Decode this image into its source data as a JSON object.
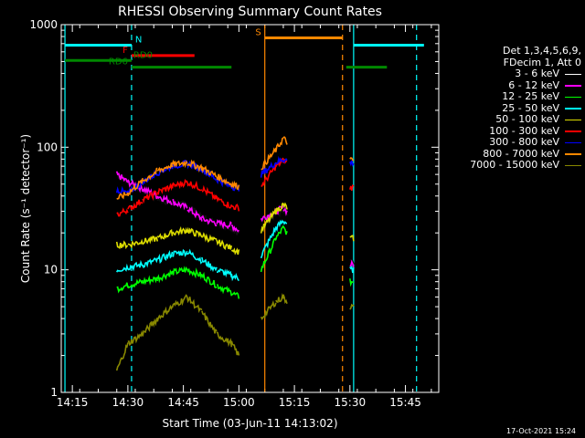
{
  "chart_data": {
    "type": "line",
    "title": "RHESSI Observing Summary Count Rates",
    "xlabel": "Start Time (03-Jun-11 14:13:02)",
    "ylabel": "Count Rate (s⁻¹ detector⁻¹)",
    "y_scale": "log",
    "ylim": [
      1,
      1000
    ],
    "xlim": [
      "14:12",
      "15:54"
    ],
    "x_ticks": [
      "14:15",
      "14:30",
      "14:45",
      "15:00",
      "15:15",
      "15:30",
      "15:45"
    ],
    "y_ticks": [
      "1",
      "10",
      "100",
      "1000"
    ],
    "legend": {
      "placement": "right",
      "header": [
        "Det 1,3,4,5,6,9,",
        "FDecim 1, Att 0"
      ],
      "entries": [
        {
          "label": "3 - 6 keV",
          "color": "#ffffff"
        },
        {
          "label": "6 - 12 keV",
          "color": "#ff00ff"
        },
        {
          "label": "12 - 25 keV",
          "color": "#00ff00"
        },
        {
          "label": "25 - 50 keV",
          "color": "#00ffff"
        },
        {
          "label": "50 - 100 keV",
          "color": "#dddd00"
        },
        {
          "label": "100 - 300 keV",
          "color": "#ff0000"
        },
        {
          "label": "300 - 800 keV",
          "color": "#0000ff"
        },
        {
          "label": "800 - 7000 keV",
          "color": "#ff8800"
        },
        {
          "label": "7000 - 15000 keV",
          "color": "#888800"
        }
      ]
    },
    "series": [
      {
        "name": "3 - 6 keV",
        "color": "#000000",
        "points": [
          [
            "14:27",
            60
          ],
          [
            "14:30",
            52
          ],
          [
            "14:34",
            45
          ],
          [
            "14:38",
            38
          ],
          [
            "14:42",
            35
          ],
          [
            "14:46",
            34
          ],
          [
            "14:50",
            27
          ],
          [
            "14:54",
            24
          ],
          [
            "14:58",
            22
          ],
          [
            "15:00",
            20
          ],
          [
            "15:06",
            25
          ],
          [
            "15:10",
            28
          ],
          [
            "15:12",
            30
          ],
          [
            "15:13",
            28
          ],
          [
            "15:30",
            12
          ],
          [
            "15:31",
            11
          ]
        ]
      },
      {
        "name": "6 - 12 keV",
        "color": "#ff00ff",
        "points": [
          [
            "14:27",
            60
          ],
          [
            "14:30",
            52
          ],
          [
            "14:34",
            46
          ],
          [
            "14:38",
            40
          ],
          [
            "14:42",
            36
          ],
          [
            "14:46",
            32
          ],
          [
            "14:50",
            26
          ],
          [
            "14:54",
            24
          ],
          [
            "14:58",
            23
          ],
          [
            "15:00",
            21
          ],
          [
            "15:06",
            26
          ],
          [
            "15:10",
            30
          ],
          [
            "15:12",
            32
          ],
          [
            "15:13",
            30
          ],
          [
            "15:30",
            11
          ],
          [
            "15:31",
            11
          ]
        ]
      },
      {
        "name": "12 - 25 keV",
        "color": "#00ff00",
        "points": [
          [
            "14:27",
            7
          ],
          [
            "14:30",
            7.5
          ],
          [
            "14:34",
            8
          ],
          [
            "14:38",
            8.5
          ],
          [
            "14:42",
            9.5
          ],
          [
            "14:46",
            10
          ],
          [
            "14:50",
            9
          ],
          [
            "14:54",
            7.5
          ],
          [
            "14:58",
            6.5
          ],
          [
            "15:00",
            6
          ],
          [
            "15:06",
            10
          ],
          [
            "15:10",
            18
          ],
          [
            "15:12",
            22
          ],
          [
            "15:13",
            20
          ],
          [
            "15:30",
            8
          ],
          [
            "15:31",
            8
          ]
        ]
      },
      {
        "name": "25 - 50 keV",
        "color": "#00ffff",
        "points": [
          [
            "14:27",
            10
          ],
          [
            "14:30",
            10.5
          ],
          [
            "14:34",
            11
          ],
          [
            "14:38",
            12
          ],
          [
            "14:42",
            13.5
          ],
          [
            "14:46",
            14
          ],
          [
            "14:50",
            12
          ],
          [
            "14:54",
            10
          ],
          [
            "14:58",
            9
          ],
          [
            "15:00",
            8.5
          ],
          [
            "15:06",
            13
          ],
          [
            "15:10",
            22
          ],
          [
            "15:12",
            25
          ],
          [
            "15:13",
            24
          ],
          [
            "15:30",
            10
          ],
          [
            "15:31",
            10
          ]
        ]
      },
      {
        "name": "50 - 100 keV",
        "color": "#dddd00",
        "points": [
          [
            "14:27",
            16
          ],
          [
            "14:30",
            16
          ],
          [
            "14:34",
            17
          ],
          [
            "14:38",
            18
          ],
          [
            "14:42",
            20
          ],
          [
            "14:46",
            21
          ],
          [
            "14:50",
            19
          ],
          [
            "14:54",
            17
          ],
          [
            "14:58",
            15
          ],
          [
            "15:00",
            14
          ],
          [
            "15:06",
            21
          ],
          [
            "15:10",
            30
          ],
          [
            "15:12",
            34
          ],
          [
            "15:13",
            32
          ],
          [
            "15:30",
            18
          ],
          [
            "15:31",
            18
          ]
        ]
      },
      {
        "name": "100 - 300 keV",
        "color": "#ff0000",
        "points": [
          [
            "14:27",
            28
          ],
          [
            "14:30",
            31
          ],
          [
            "14:34",
            37
          ],
          [
            "14:38",
            43
          ],
          [
            "14:42",
            48
          ],
          [
            "14:46",
            52
          ],
          [
            "14:50",
            46
          ],
          [
            "14:54",
            38
          ],
          [
            "14:58",
            33
          ],
          [
            "15:00",
            32
          ],
          [
            "15:06",
            48
          ],
          [
            "15:10",
            70
          ],
          [
            "15:12",
            78
          ],
          [
            "15:13",
            75
          ],
          [
            "15:30",
            47
          ],
          [
            "15:31",
            47
          ]
        ]
      },
      {
        "name": "300 - 800 keV",
        "color": "#0000ff",
        "points": [
          [
            "14:27",
            45
          ],
          [
            "14:30",
            42
          ],
          [
            "14:34",
            52
          ],
          [
            "14:38",
            62
          ],
          [
            "14:42",
            70
          ],
          [
            "14:46",
            74
          ],
          [
            "14:50",
            66
          ],
          [
            "14:54",
            55
          ],
          [
            "14:58",
            48
          ],
          [
            "15:00",
            46
          ],
          [
            "15:06",
            60
          ],
          [
            "15:10",
            75
          ],
          [
            "15:12",
            80
          ],
          [
            "15:13",
            78
          ],
          [
            "15:30",
            75
          ],
          [
            "15:31",
            75
          ]
        ]
      },
      {
        "name": "800 - 7000 keV",
        "color": "#ff8800",
        "points": [
          [
            "14:27",
            38
          ],
          [
            "14:30",
            42
          ],
          [
            "14:34",
            53
          ],
          [
            "14:38",
            64
          ],
          [
            "14:42",
            72
          ],
          [
            "14:46",
            75
          ],
          [
            "14:50",
            68
          ],
          [
            "14:54",
            58
          ],
          [
            "14:58",
            50
          ],
          [
            "15:00",
            48
          ],
          [
            "15:06",
            68
          ],
          [
            "15:10",
            95
          ],
          [
            "15:12",
            118
          ],
          [
            "15:13",
            110
          ],
          [
            "15:30",
            78
          ],
          [
            "15:31",
            78
          ]
        ]
      },
      {
        "name": "7000 - 15000 keV",
        "color": "#888800",
        "points": [
          [
            "14:27",
            1.5
          ],
          [
            "14:30",
            2.5
          ],
          [
            "14:34",
            3
          ],
          [
            "14:38",
            4
          ],
          [
            "14:42",
            5
          ],
          [
            "14:46",
            6
          ],
          [
            "14:50",
            4.5
          ],
          [
            "14:54",
            3
          ],
          [
            "14:58",
            2.5
          ],
          [
            "15:00",
            2
          ],
          [
            "15:06",
            4
          ],
          [
            "15:10",
            5.5
          ],
          [
            "15:12",
            6
          ],
          [
            "15:13",
            5.5
          ],
          [
            "15:30",
            5
          ],
          [
            "15:31",
            5
          ]
        ]
      }
    ],
    "flag_bars": [
      {
        "label": "N",
        "color": "#00ffff",
        "y": 680,
        "segments": [
          [
            "14:13",
            "14:31"
          ],
          [
            "15:31",
            "15:50"
          ]
        ]
      },
      {
        "label": "S",
        "color": "#ff8800",
        "y": 780,
        "segments": [
          [
            "15:07",
            "15:28"
          ]
        ]
      },
      {
        "label": "F",
        "color": "#ff0000",
        "y": 560,
        "segments": [
          [
            "14:31",
            "14:48"
          ]
        ]
      },
      {
        "label": "RD0",
        "color": "#008800",
        "y": 510,
        "segments": [
          [
            "14:13",
            "14:31"
          ]
        ]
      },
      {
        "label": "RD6",
        "color": "#008800",
        "y": 450,
        "segments": [
          [
            "14:31",
            "14:58"
          ],
          [
            "15:29",
            "15:40"
          ]
        ]
      }
    ],
    "vertical_markers": [
      {
        "time": "14:13",
        "color": "#00ffff",
        "style": "solid"
      },
      {
        "time": "14:31",
        "color": "#00ffff",
        "style": "dashed"
      },
      {
        "time": "15:07",
        "color": "#ff8800",
        "style": "solid"
      },
      {
        "time": "15:28",
        "color": "#ff8800",
        "style": "dashed"
      },
      {
        "time": "15:31",
        "color": "#00ffff",
        "style": "solid"
      },
      {
        "time": "15:48",
        "color": "#00ffff",
        "style": "dashed"
      }
    ]
  },
  "footer_timestamp": "17-Oct-2021 15:24"
}
